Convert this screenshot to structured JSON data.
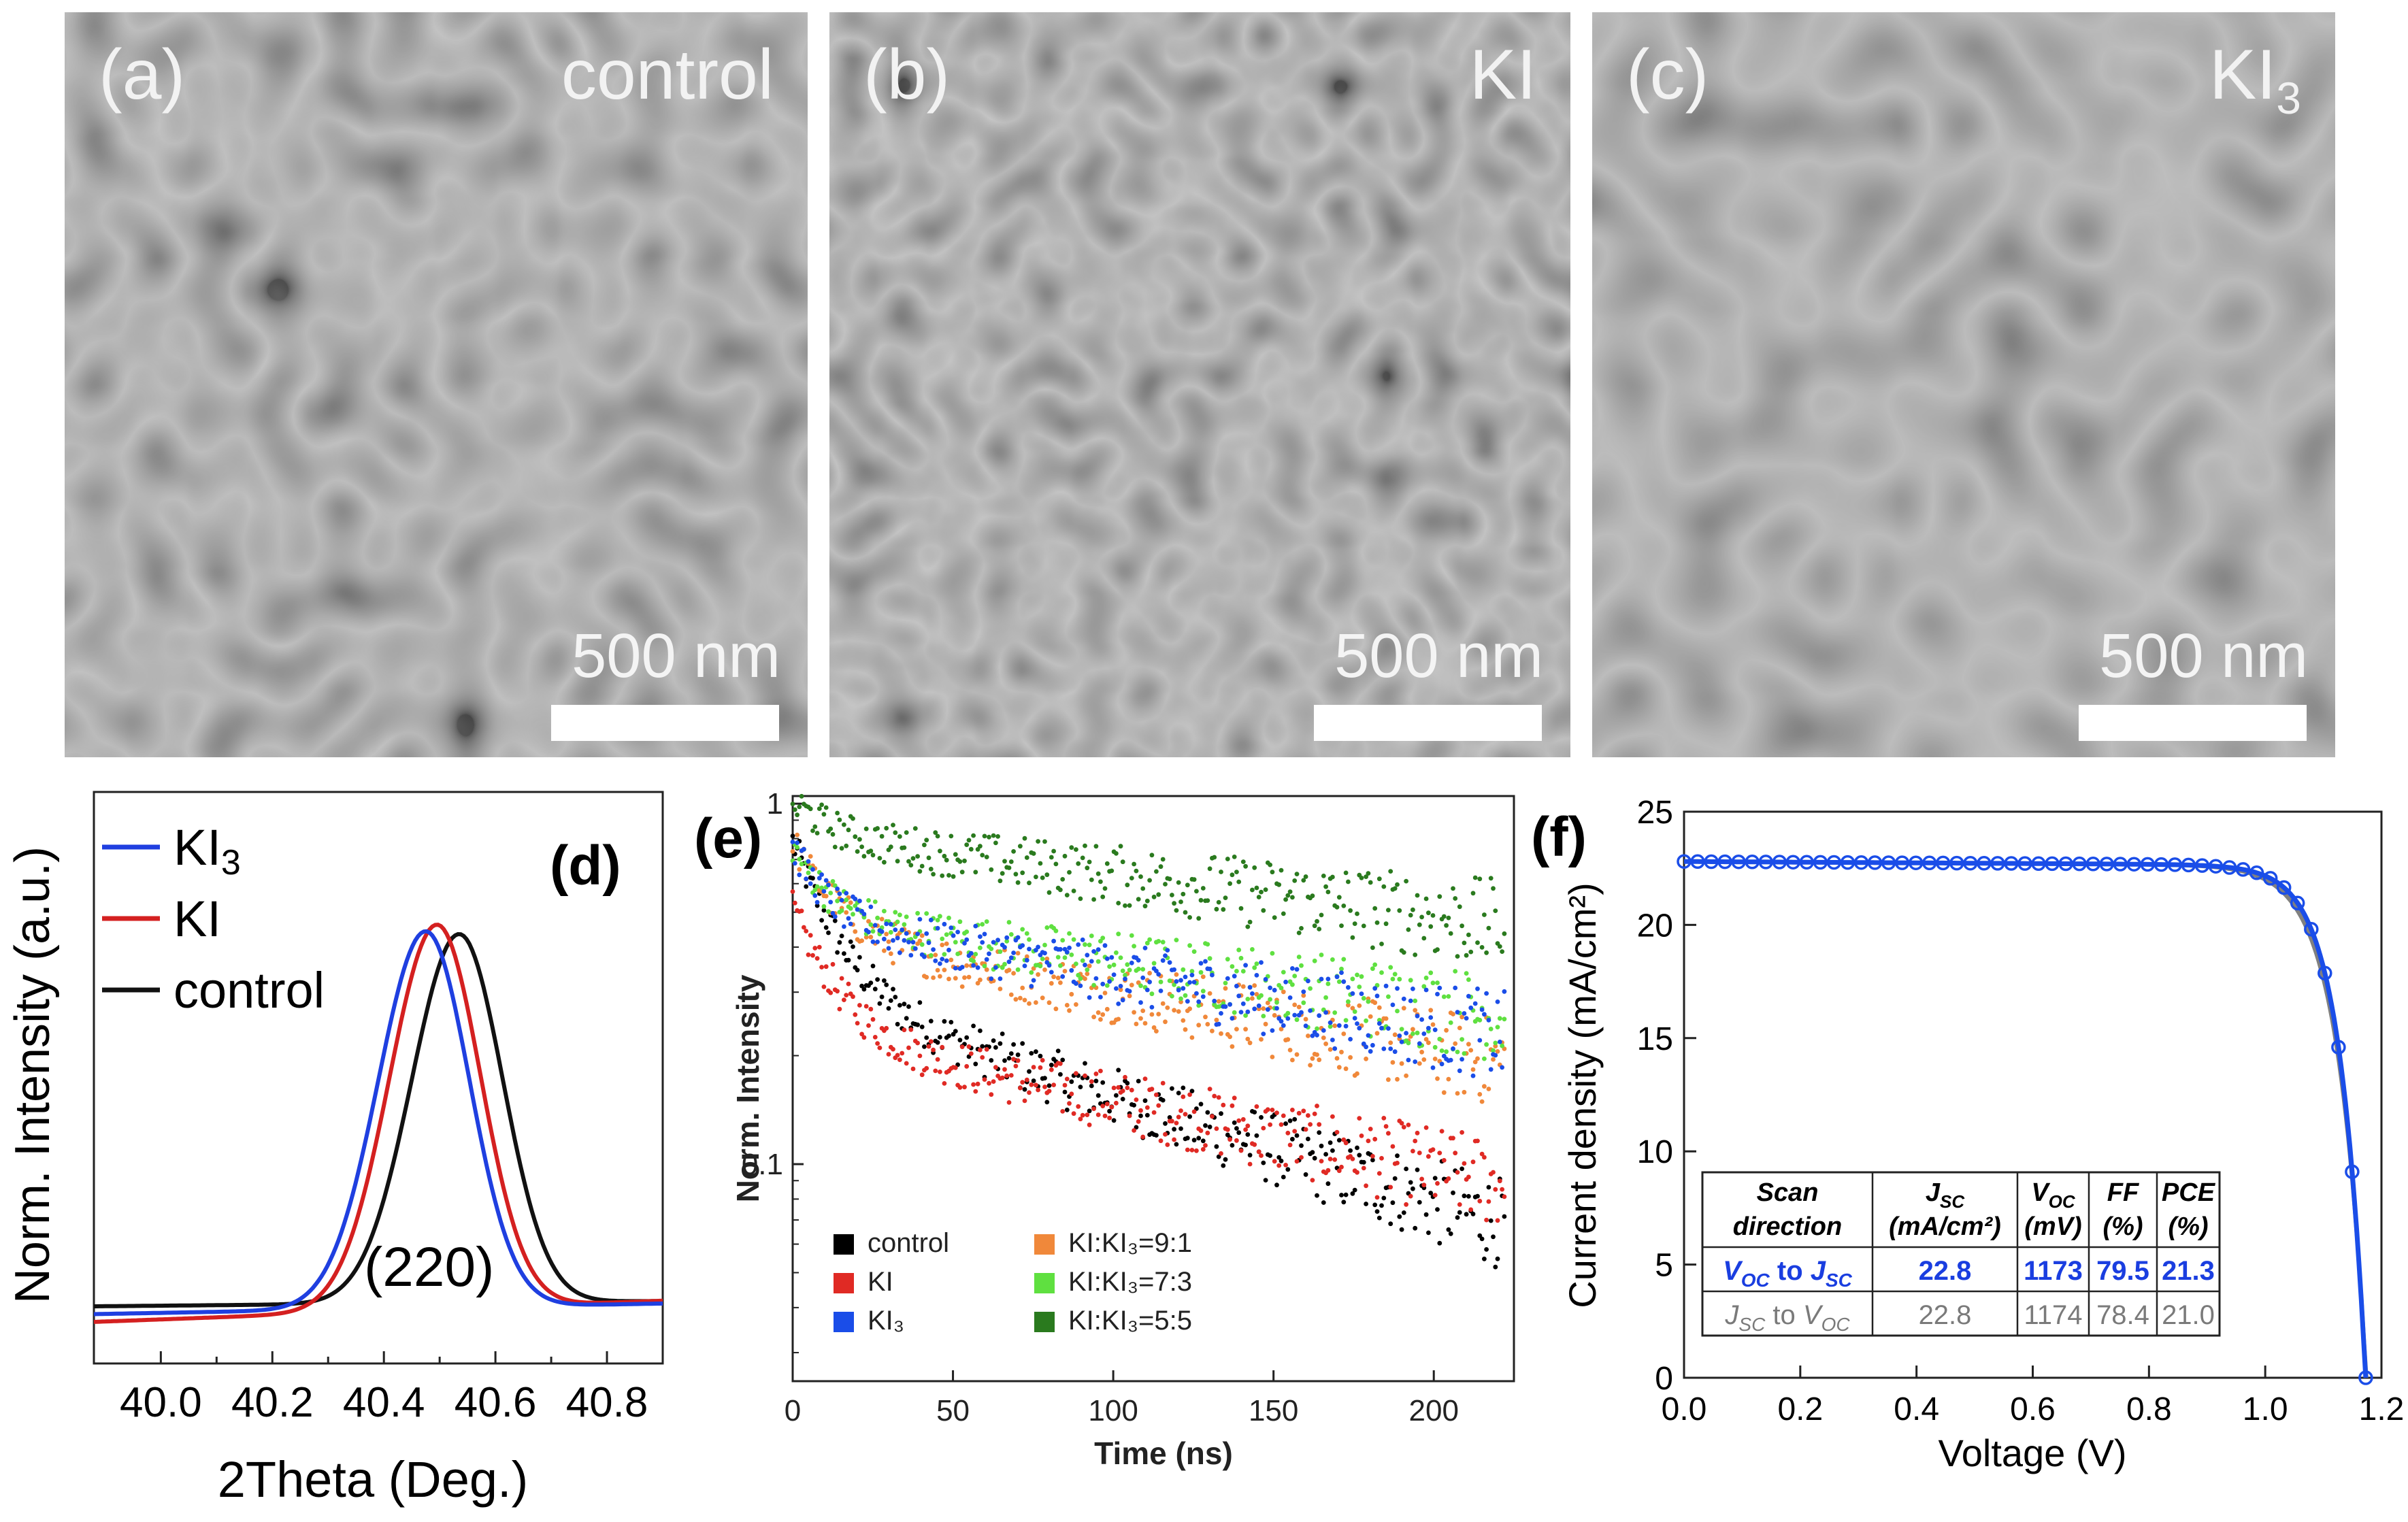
{
  "sem_panels": [
    {
      "letter": "(a)",
      "name": "control",
      "scale_label": "500 nm"
    },
    {
      "letter": "(b)",
      "name": "KI",
      "scale_label": "500 nm"
    },
    {
      "letter": "(c)",
      "name": "KI",
      "name_sub": "3",
      "scale_label": "500 nm"
    }
  ],
  "chart_data": [
    {
      "panel": "(d)",
      "type": "line",
      "xlabel": "2Theta (Deg.)",
      "ylabel": "Norm. Intensity (a.u.)",
      "xlim": [
        39.88,
        40.9
      ],
      "ylim": [
        0,
        1.1
      ],
      "xticks": [
        "40.0",
        "40.2",
        "40.4",
        "40.6",
        "40.8"
      ],
      "annotation": "(220)",
      "series": [
        {
          "name": "KI3",
          "color": "#1f3fe0",
          "center": 40.475,
          "base": 0.095,
          "baseslope": 0.02
        },
        {
          "name": "KI",
          "color": "#d42020",
          "center": 40.495,
          "base": 0.08,
          "baseslope": 0.04
        },
        {
          "name": "control",
          "color": "#111111",
          "center": 40.535,
          "base": 0.11,
          "baseslope": 0.01
        }
      ],
      "legend": [
        "KI3",
        "KI",
        "control"
      ]
    },
    {
      "panel": "(e)",
      "type": "scatter",
      "xlabel": "Time (ns)",
      "ylabel": "Norm. Intensity",
      "xlim": [
        0,
        225
      ],
      "ylim": [
        0.025,
        1.05
      ],
      "yscale": "log",
      "xticks": [
        "0",
        "50",
        "100",
        "150",
        "200"
      ],
      "yticks": [
        "0.1",
        "1"
      ],
      "series": [
        {
          "name": "control",
          "color": "#000000",
          "end": 0.068
        },
        {
          "name": "KI",
          "color": "#e02a24",
          "end": 0.088
        },
        {
          "name": "KI3",
          "color": "#1a4de8",
          "end": 0.225
        },
        {
          "name": "KI:KI3=9:1",
          "color": "#f0883a",
          "end": 0.19
        },
        {
          "name": "KI:KI3=7:3",
          "color": "#5fe040",
          "end": 0.255
        },
        {
          "name": "KI:KI3=5:5",
          "color": "#2a7a1e",
          "end": 0.46
        }
      ],
      "legend_labels": [
        "control",
        "KI",
        "KI₃",
        "KI:KI₃=9:1",
        "KI:KI₃=7:3",
        "KI:KI₃=5:5"
      ]
    },
    {
      "panel": "(f)",
      "type": "line",
      "xlabel": "Voltage (V)",
      "ylabel": "Current density (mA/cm²)",
      "xlim": [
        0,
        1.2
      ],
      "ylim": [
        0,
        25
      ],
      "xticks": [
        "0.0",
        "0.2",
        "0.4",
        "0.6",
        "0.8",
        "1.0",
        "1.2"
      ],
      "yticks": [
        "0",
        "5",
        "10",
        "15",
        "20",
        "25"
      ],
      "series": [
        {
          "name": "Voc to Jsc",
          "color": "#1a4de8",
          "jsc": 22.8,
          "voc": 1.173
        },
        {
          "name": "Jsc to Voc",
          "color": "#808080",
          "jsc": 22.8,
          "voc": 1.174
        }
      ],
      "table": {
        "headers": [
          {
            "l1": "Scan",
            "l2": "direction"
          },
          {
            "l1": "J",
            "l1sub": "SC",
            "l2": "(mA/cm²)"
          },
          {
            "l1": "V",
            "l1sub": "OC",
            "l2": "(mV)"
          },
          {
            "l1": "FF",
            "l2": "(%)"
          },
          {
            "l1": "PCE",
            "l2": "(%)"
          }
        ],
        "rows": [
          {
            "dir_a": "V",
            "dir_a_sub": "OC",
            "dir_mid": " to ",
            "dir_b": "J",
            "dir_b_sub": "SC",
            "jsc": "22.8",
            "voc": "1173",
            "ff": "79.5",
            "pce": "21.3",
            "color": "#1a3ee0"
          },
          {
            "dir_a": "J",
            "dir_a_sub": "SC",
            "dir_mid": " to ",
            "dir_b": "V",
            "dir_b_sub": "OC",
            "jsc": "22.8",
            "voc": "1174",
            "ff": "78.4",
            "pce": "21.0",
            "color": "#7a7a7a"
          }
        ]
      }
    }
  ]
}
